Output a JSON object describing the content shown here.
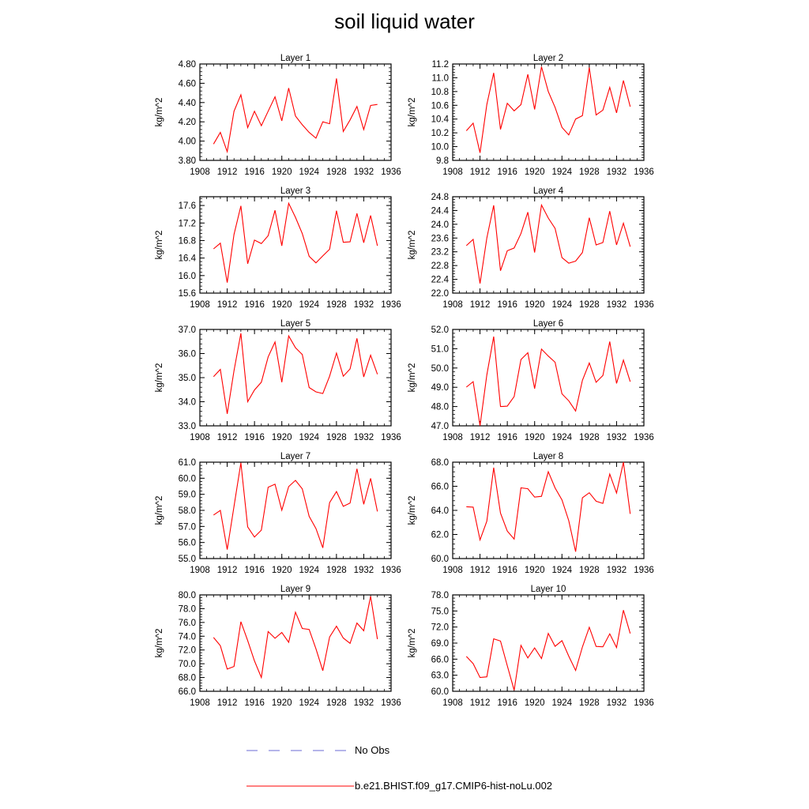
{
  "title": "soil liquid water",
  "legend": [
    {
      "label": "No Obs",
      "color": "#6b6bd6",
      "style": "dashed"
    },
    {
      "label": "b.e21.BHIST.f09_g17.CMIP6-hist-noLu.002",
      "color": "#ff0000",
      "style": "solid"
    }
  ],
  "chart_data": [
    {
      "type": "line",
      "title": "Layer 1",
      "ylabel": "kg/m^2",
      "xlim": [
        1908,
        1936
      ],
      "xticks": [
        "1908",
        "1912",
        "1916",
        "1920",
        "1924",
        "1928",
        "1932",
        "1936"
      ],
      "ylim": [
        3.8,
        4.8
      ],
      "yticks": [
        "3.80",
        "4.00",
        "4.20",
        "4.40",
        "4.60",
        "4.80"
      ],
      "x": [
        1910,
        1911,
        1912,
        1913,
        1914,
        1915,
        1916,
        1917,
        1918,
        1919,
        1920,
        1921,
        1922,
        1923,
        1924,
        1925,
        1926,
        1927,
        1928,
        1929,
        1930,
        1931,
        1932,
        1933,
        1934
      ],
      "series": [
        {
          "name": "b.e21.BHIST.f09_g17.CMIP6-hist-noLu.002",
          "color": "#ff0000",
          "values": [
            3.97,
            4.09,
            3.89,
            4.31,
            4.48,
            4.14,
            4.31,
            4.16,
            4.31,
            4.46,
            4.21,
            4.55,
            4.26,
            4.17,
            4.09,
            4.03,
            4.2,
            4.18,
            4.65,
            4.1,
            4.22,
            4.36,
            4.12,
            4.37,
            4.38
          ]
        }
      ]
    },
    {
      "type": "line",
      "title": "Layer 2",
      "ylabel": "kg/m^2",
      "xlim": [
        1908,
        1936
      ],
      "xticks": [
        "1908",
        "1912",
        "1916",
        "1920",
        "1924",
        "1928",
        "1932",
        "1936"
      ],
      "ylim": [
        9.8,
        11.2
      ],
      "yticks": [
        "9.8",
        "10.0",
        "10.2",
        "10.4",
        "10.6",
        "10.8",
        "11.0",
        "11.2"
      ],
      "x": [
        1910,
        1911,
        1912,
        1913,
        1914,
        1915,
        1916,
        1917,
        1918,
        1919,
        1920,
        1921,
        1922,
        1923,
        1924,
        1925,
        1926,
        1927,
        1928,
        1929,
        1930,
        1931,
        1932,
        1933,
        1934
      ],
      "series": [
        {
          "name": "b.e21.BHIST.f09_g17.CMIP6-hist-noLu.002",
          "color": "#ff0000",
          "values": [
            10.23,
            10.34,
            9.91,
            10.61,
            11.07,
            10.25,
            10.63,
            10.52,
            10.61,
            11.05,
            10.54,
            11.16,
            10.8,
            10.57,
            10.28,
            10.17,
            10.4,
            10.45,
            11.15,
            10.46,
            10.53,
            10.86,
            10.49,
            10.96,
            10.58
          ]
        }
      ]
    },
    {
      "type": "line",
      "title": "Layer 3",
      "ylabel": "kg/m^2",
      "xlim": [
        1908,
        1936
      ],
      "xticks": [
        "1908",
        "1912",
        "1916",
        "1920",
        "1924",
        "1928",
        "1932",
        "1936"
      ],
      "ylim": [
        15.6,
        17.8
      ],
      "yticks": [
        "15.6",
        "16.0",
        "16.4",
        "16.8",
        "17.2",
        "17.6"
      ],
      "x": [
        1910,
        1911,
        1912,
        1913,
        1914,
        1915,
        1916,
        1917,
        1918,
        1919,
        1920,
        1921,
        1922,
        1923,
        1924,
        1925,
        1926,
        1927,
        1928,
        1929,
        1930,
        1931,
        1932,
        1933,
        1934
      ],
      "series": [
        {
          "name": "b.e21.BHIST.f09_g17.CMIP6-hist-noLu.002",
          "color": "#ff0000",
          "values": [
            16.61,
            16.74,
            15.84,
            16.94,
            17.59,
            16.27,
            16.81,
            16.73,
            16.91,
            17.49,
            16.68,
            17.65,
            17.33,
            16.96,
            16.44,
            16.29,
            16.45,
            16.6,
            17.48,
            16.76,
            16.77,
            17.42,
            16.75,
            17.37,
            16.68
          ]
        }
      ]
    },
    {
      "type": "line",
      "title": "Layer 4",
      "ylabel": "kg/m^2",
      "xlim": [
        1908,
        1936
      ],
      "xticks": [
        "1908",
        "1912",
        "1916",
        "1920",
        "1924",
        "1928",
        "1932",
        "1936"
      ],
      "ylim": [
        22.0,
        24.8
      ],
      "yticks": [
        "22.0",
        "22.4",
        "22.8",
        "23.2",
        "23.6",
        "24.0",
        "24.4",
        "24.8"
      ],
      "x": [
        1910,
        1911,
        1912,
        1913,
        1914,
        1915,
        1916,
        1917,
        1918,
        1919,
        1920,
        1921,
        1922,
        1923,
        1924,
        1925,
        1926,
        1927,
        1928,
        1929,
        1930,
        1931,
        1932,
        1933,
        1934
      ],
      "series": [
        {
          "name": "b.e21.BHIST.f09_g17.CMIP6-hist-noLu.002",
          "color": "#ff0000",
          "values": [
            23.38,
            23.56,
            22.28,
            23.6,
            24.55,
            22.65,
            23.23,
            23.31,
            23.73,
            24.35,
            23.18,
            24.56,
            24.18,
            23.88,
            23.03,
            22.87,
            22.93,
            23.18,
            24.19,
            23.4,
            23.47,
            24.38,
            23.4,
            24.03,
            23.35
          ]
        }
      ]
    },
    {
      "type": "line",
      "title": "Layer 5",
      "ylabel": "kg/m^2",
      "xlim": [
        1908,
        1936
      ],
      "xticks": [
        "1908",
        "1912",
        "1916",
        "1920",
        "1924",
        "1928",
        "1932",
        "1936"
      ],
      "ylim": [
        33.0,
        37.0
      ],
      "yticks": [
        "33.0",
        "34.0",
        "35.0",
        "36.0",
        "37.0"
      ],
      "x": [
        1910,
        1911,
        1912,
        1913,
        1914,
        1915,
        1916,
        1917,
        1918,
        1919,
        1920,
        1921,
        1922,
        1923,
        1924,
        1925,
        1926,
        1927,
        1928,
        1929,
        1930,
        1931,
        1932,
        1933,
        1934
      ],
      "series": [
        {
          "name": "b.e21.BHIST.f09_g17.CMIP6-hist-noLu.002",
          "color": "#ff0000",
          "values": [
            35.04,
            35.34,
            33.5,
            35.29,
            36.84,
            34.0,
            34.49,
            34.81,
            35.86,
            36.48,
            34.81,
            36.73,
            36.24,
            35.96,
            34.59,
            34.41,
            34.34,
            35.06,
            36.02,
            35.06,
            35.36,
            36.63,
            35.03,
            35.93,
            35.14
          ]
        }
      ]
    },
    {
      "type": "line",
      "title": "Layer 6",
      "ylabel": "kg/m^2",
      "xlim": [
        1908,
        1936
      ],
      "xticks": [
        "1908",
        "1912",
        "1916",
        "1920",
        "1924",
        "1928",
        "1932",
        "1936"
      ],
      "ylim": [
        47.0,
        52.0
      ],
      "yticks": [
        "47.0",
        "48.0",
        "49.0",
        "50.0",
        "51.0",
        "52.0"
      ],
      "x": [
        1910,
        1911,
        1912,
        1913,
        1914,
        1915,
        1916,
        1917,
        1918,
        1919,
        1920,
        1921,
        1922,
        1923,
        1924,
        1925,
        1926,
        1927,
        1928,
        1929,
        1930,
        1931,
        1932,
        1933,
        1934
      ],
      "series": [
        {
          "name": "b.e21.BHIST.f09_g17.CMIP6-hist-noLu.002",
          "color": "#ff0000",
          "values": [
            49.01,
            49.29,
            47.01,
            49.64,
            51.63,
            48.0,
            48.02,
            48.52,
            50.44,
            50.79,
            48.93,
            50.98,
            50.62,
            50.3,
            48.66,
            48.3,
            47.77,
            49.36,
            50.26,
            49.26,
            49.61,
            51.37,
            49.2,
            50.41,
            49.29
          ]
        }
      ]
    },
    {
      "type": "line",
      "title": "Layer 7",
      "ylabel": "kg/m^2",
      "xlim": [
        1908,
        1936
      ],
      "xticks": [
        "1908",
        "1912",
        "1916",
        "1920",
        "1924",
        "1928",
        "1932",
        "1936"
      ],
      "ylim": [
        55.0,
        61.0
      ],
      "yticks": [
        "55.0",
        "56.0",
        "57.0",
        "58.0",
        "59.0",
        "60.0",
        "61.0"
      ],
      "x": [
        1910,
        1911,
        1912,
        1913,
        1914,
        1915,
        1916,
        1917,
        1918,
        1919,
        1920,
        1921,
        1922,
        1923,
        1924,
        1925,
        1926,
        1927,
        1928,
        1929,
        1930,
        1931,
        1932,
        1933,
        1934
      ],
      "series": [
        {
          "name": "b.e21.BHIST.f09_g17.CMIP6-hist-noLu.002",
          "color": "#ff0000",
          "values": [
            57.71,
            58.0,
            55.56,
            58.25,
            60.96,
            56.97,
            56.34,
            56.77,
            59.44,
            59.63,
            58.01,
            59.48,
            59.87,
            59.34,
            57.63,
            56.87,
            55.67,
            58.48,
            59.17,
            58.25,
            58.45,
            60.59,
            58.38,
            59.99,
            57.93
          ]
        }
      ]
    },
    {
      "type": "line",
      "title": "Layer 8",
      "ylabel": "kg/m^2",
      "xlim": [
        1908,
        1936
      ],
      "xticks": [
        "1908",
        "1912",
        "1916",
        "1920",
        "1924",
        "1928",
        "1932",
        "1936"
      ],
      "ylim": [
        60.0,
        68.0
      ],
      "yticks": [
        "60.0",
        "62.0",
        "64.0",
        "66.0",
        "68.0"
      ],
      "x": [
        1910,
        1911,
        1912,
        1913,
        1914,
        1915,
        1916,
        1917,
        1918,
        1919,
        1920,
        1921,
        1922,
        1923,
        1924,
        1925,
        1926,
        1927,
        1928,
        1929,
        1930,
        1931,
        1932,
        1933,
        1934
      ],
      "series": [
        {
          "name": "b.e21.BHIST.f09_g17.CMIP6-hist-noLu.002",
          "color": "#ff0000",
          "values": [
            64.3,
            64.27,
            61.55,
            63.1,
            67.54,
            63.77,
            62.28,
            61.62,
            65.87,
            65.8,
            65.1,
            65.17,
            67.21,
            65.86,
            64.87,
            63.15,
            60.57,
            65.04,
            65.46,
            64.76,
            64.58,
            67.01,
            65.44,
            68.0,
            63.71
          ]
        }
      ]
    },
    {
      "type": "line",
      "title": "Layer 9",
      "ylabel": "kg/m^2",
      "xlim": [
        1908,
        1936
      ],
      "xticks": [
        "1908",
        "1912",
        "1916",
        "1920",
        "1924",
        "1928",
        "1932",
        "1936"
      ],
      "ylim": [
        66.0,
        80.0
      ],
      "yticks": [
        "66.0",
        "68.0",
        "70.0",
        "72.0",
        "74.0",
        "76.0",
        "78.0",
        "80.0"
      ],
      "x": [
        1910,
        1911,
        1912,
        1913,
        1914,
        1915,
        1916,
        1917,
        1918,
        1919,
        1920,
        1921,
        1922,
        1923,
        1924,
        1925,
        1926,
        1927,
        1928,
        1929,
        1930,
        1931,
        1932,
        1933,
        1934
      ],
      "series": [
        {
          "name": "b.e21.BHIST.f09_g17.CMIP6-hist-noLu.002",
          "color": "#ff0000",
          "values": [
            73.81,
            72.62,
            69.23,
            69.6,
            76.11,
            73.37,
            70.42,
            68.0,
            74.67,
            73.7,
            74.54,
            73.12,
            77.49,
            75.12,
            74.99,
            72.17,
            68.99,
            73.88,
            75.45,
            73.73,
            72.96,
            75.92,
            74.79,
            79.8,
            73.57
          ]
        }
      ]
    },
    {
      "type": "line",
      "title": "Layer 10",
      "ylabel": "kg/m^2",
      "xlim": [
        1908,
        1936
      ],
      "xticks": [
        "1908",
        "1912",
        "1916",
        "1920",
        "1924",
        "1928",
        "1932",
        "1936"
      ],
      "ylim": [
        60.0,
        78.0
      ],
      "yticks": [
        "60.0",
        "63.0",
        "66.0",
        "69.0",
        "72.0",
        "75.0",
        "78.0"
      ],
      "x": [
        1910,
        1911,
        1912,
        1913,
        1914,
        1915,
        1916,
        1917,
        1918,
        1919,
        1920,
        1921,
        1922,
        1923,
        1924,
        1925,
        1926,
        1927,
        1928,
        1929,
        1930,
        1931,
        1932,
        1933,
        1934
      ],
      "series": [
        {
          "name": "b.e21.BHIST.f09_g17.CMIP6-hist-noLu.002",
          "color": "#ff0000",
          "values": [
            66.5,
            65.17,
            62.57,
            62.7,
            69.8,
            69.39,
            64.78,
            60.19,
            68.57,
            66.23,
            68.1,
            66.12,
            70.81,
            68.39,
            69.46,
            66.56,
            63.9,
            68.27,
            71.95,
            68.38,
            68.31,
            70.72,
            68.18,
            75.15,
            70.8
          ]
        }
      ]
    }
  ]
}
